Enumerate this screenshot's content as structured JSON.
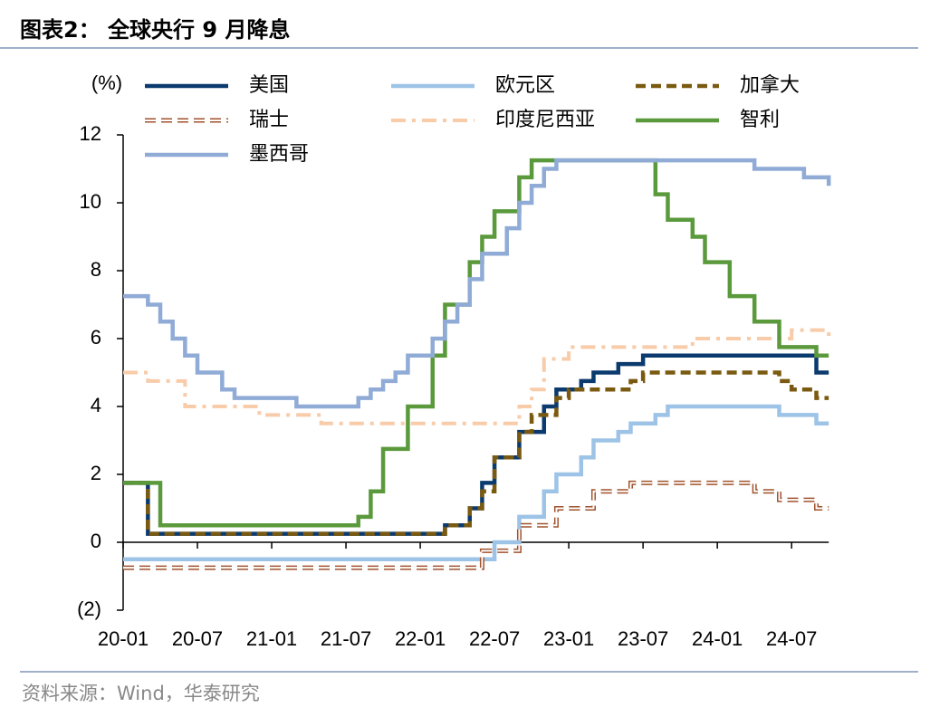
{
  "chart_data": {
    "type": "step-line",
    "title": "图表2： 全球央行 9 月降息",
    "y_label": "(%)",
    "source": "资料来源：Wind，华泰研究",
    "categories": [
      "20-01",
      null,
      null,
      null,
      null,
      null,
      "20-07",
      null,
      null,
      null,
      null,
      null,
      "21-01",
      null,
      null,
      null,
      null,
      null,
      "21-07",
      null,
      null,
      null,
      null,
      null,
      "22-01",
      null,
      null,
      null,
      null,
      null,
      "22-07",
      null,
      null,
      null,
      null,
      null,
      "23-01",
      null,
      null,
      null,
      null,
      null,
      "23-07",
      null,
      null,
      null,
      null,
      null,
      "24-01",
      null,
      null,
      null,
      null,
      null,
      "24-07",
      null,
      null,
      null
    ],
    "ylim": [
      -2,
      12
    ],
    "yticks": [
      {
        "value": -2,
        "label": "(2)"
      },
      0,
      2,
      4,
      6,
      8,
      10,
      12
    ],
    "series": [
      {
        "name": "美国",
        "color": "#0b3a6e",
        "style": "solid",
        "values": [
          1.75,
          1.75,
          0.25,
          0.25,
          0.25,
          0.25,
          0.25,
          0.25,
          0.25,
          0.25,
          0.25,
          0.25,
          0.25,
          0.25,
          0.25,
          0.25,
          0.25,
          0.25,
          0.25,
          0.25,
          0.25,
          0.25,
          0.25,
          0.25,
          0.25,
          0.25,
          0.5,
          0.5,
          1.0,
          1.75,
          2.5,
          2.5,
          3.25,
          3.25,
          4.0,
          4.5,
          4.5,
          4.75,
          5.0,
          5.0,
          5.25,
          5.25,
          5.5,
          5.5,
          5.5,
          5.5,
          5.5,
          5.5,
          5.5,
          5.5,
          5.5,
          5.5,
          5.5,
          5.5,
          5.5,
          5.5,
          5.0,
          5.0
        ]
      },
      {
        "name": "欧元区",
        "color": "#9dc3e6",
        "style": "solid",
        "values": [
          -0.5,
          -0.5,
          -0.5,
          -0.5,
          -0.5,
          -0.5,
          -0.5,
          -0.5,
          -0.5,
          -0.5,
          -0.5,
          -0.5,
          -0.5,
          -0.5,
          -0.5,
          -0.5,
          -0.5,
          -0.5,
          -0.5,
          -0.5,
          -0.5,
          -0.5,
          -0.5,
          -0.5,
          -0.5,
          -0.5,
          -0.5,
          -0.5,
          -0.5,
          -0.5,
          0,
          0,
          0.75,
          0.75,
          1.5,
          2.0,
          2.0,
          2.5,
          3.0,
          3.0,
          3.25,
          3.5,
          3.5,
          3.75,
          4.0,
          4.0,
          4.0,
          4.0,
          4.0,
          4.0,
          4.0,
          4.0,
          4.0,
          3.75,
          3.75,
          3.75,
          3.5,
          3.5
        ]
      },
      {
        "name": "加拿大",
        "color": "#7a5a10",
        "style": "dash",
        "values": [
          1.75,
          1.75,
          0.25,
          0.25,
          0.25,
          0.25,
          0.25,
          0.25,
          0.25,
          0.25,
          0.25,
          0.25,
          0.25,
          0.25,
          0.25,
          0.25,
          0.25,
          0.25,
          0.25,
          0.25,
          0.25,
          0.25,
          0.25,
          0.25,
          0.25,
          0.25,
          0.5,
          0.5,
          1.0,
          1.5,
          2.5,
          2.5,
          3.25,
          3.75,
          3.75,
          4.25,
          4.5,
          4.5,
          4.5,
          4.5,
          4.5,
          4.75,
          5.0,
          5.0,
          5.0,
          5.0,
          5.0,
          5.0,
          5.0,
          5.0,
          5.0,
          5.0,
          5.0,
          4.75,
          4.5,
          4.5,
          4.25,
          4.25
        ]
      },
      {
        "name": "瑞士",
        "color": "#a0522d",
        "style": "dash-outline",
        "values": [
          -0.75,
          -0.75,
          -0.75,
          -0.75,
          -0.75,
          -0.75,
          -0.75,
          -0.75,
          -0.75,
          -0.75,
          -0.75,
          -0.75,
          -0.75,
          -0.75,
          -0.75,
          -0.75,
          -0.75,
          -0.75,
          -0.75,
          -0.75,
          -0.75,
          -0.75,
          -0.75,
          -0.75,
          -0.75,
          -0.75,
          -0.75,
          -0.75,
          -0.75,
          -0.25,
          -0.25,
          -0.25,
          0.5,
          0.5,
          0.5,
          1.0,
          1.0,
          1.0,
          1.5,
          1.5,
          1.5,
          1.75,
          1.75,
          1.75,
          1.75,
          1.75,
          1.75,
          1.75,
          1.75,
          1.75,
          1.75,
          1.5,
          1.5,
          1.25,
          1.25,
          1.25,
          1.0,
          1.0
        ]
      },
      {
        "name": "印度尼西亚",
        "color": "#f8cba9",
        "style": "dash-dot",
        "values": [
          5.0,
          5.0,
          4.75,
          4.75,
          4.75,
          4.0,
          4.0,
          4.0,
          4.0,
          4.0,
          4.0,
          3.75,
          3.75,
          3.75,
          3.75,
          3.75,
          3.5,
          3.5,
          3.5,
          3.5,
          3.5,
          3.5,
          3.5,
          3.5,
          3.5,
          3.5,
          3.5,
          3.5,
          3.5,
          3.5,
          3.5,
          3.5,
          4.0,
          4.5,
          5.4,
          5.4,
          5.75,
          5.75,
          5.75,
          5.75,
          5.75,
          5.75,
          5.75,
          5.75,
          5.75,
          5.75,
          6.0,
          6.0,
          6.0,
          6.0,
          6.0,
          6.0,
          6.0,
          6.0,
          6.25,
          6.25,
          6.25,
          6.0
        ]
      },
      {
        "name": "智利",
        "color": "#5b9a3c",
        "style": "solid",
        "values": [
          1.75,
          1.75,
          1.75,
          0.5,
          0.5,
          0.5,
          0.5,
          0.5,
          0.5,
          0.5,
          0.5,
          0.5,
          0.5,
          0.5,
          0.5,
          0.5,
          0.5,
          0.5,
          0.5,
          0.75,
          1.5,
          2.75,
          2.75,
          4.0,
          4.0,
          5.5,
          7.0,
          7.0,
          8.25,
          9.0,
          9.75,
          9.75,
          10.75,
          11.25,
          11.25,
          11.25,
          11.25,
          11.25,
          11.25,
          11.25,
          11.25,
          11.25,
          11.25,
          10.25,
          9.5,
          9.5,
          9.0,
          8.25,
          8.25,
          7.25,
          7.25,
          6.5,
          6.5,
          5.75,
          5.75,
          5.75,
          5.5,
          5.5
        ]
      },
      {
        "name": "墨西哥",
        "color": "#8fabd6",
        "style": "solid",
        "values": [
          7.25,
          7.25,
          7.0,
          6.5,
          6.0,
          5.5,
          5.0,
          5.0,
          4.5,
          4.25,
          4.25,
          4.25,
          4.25,
          4.25,
          4.0,
          4.0,
          4.0,
          4.0,
          4.0,
          4.25,
          4.5,
          4.75,
          5.0,
          5.5,
          5.5,
          6.0,
          6.5,
          7.0,
          7.75,
          8.5,
          8.5,
          9.25,
          10.0,
          10.5,
          11.0,
          11.25,
          11.25,
          11.25,
          11.25,
          11.25,
          11.25,
          11.25,
          11.25,
          11.25,
          11.25,
          11.25,
          11.25,
          11.25,
          11.25,
          11.25,
          11.25,
          11.0,
          11.0,
          11.0,
          11.0,
          10.75,
          10.75,
          10.5
        ]
      }
    ]
  }
}
